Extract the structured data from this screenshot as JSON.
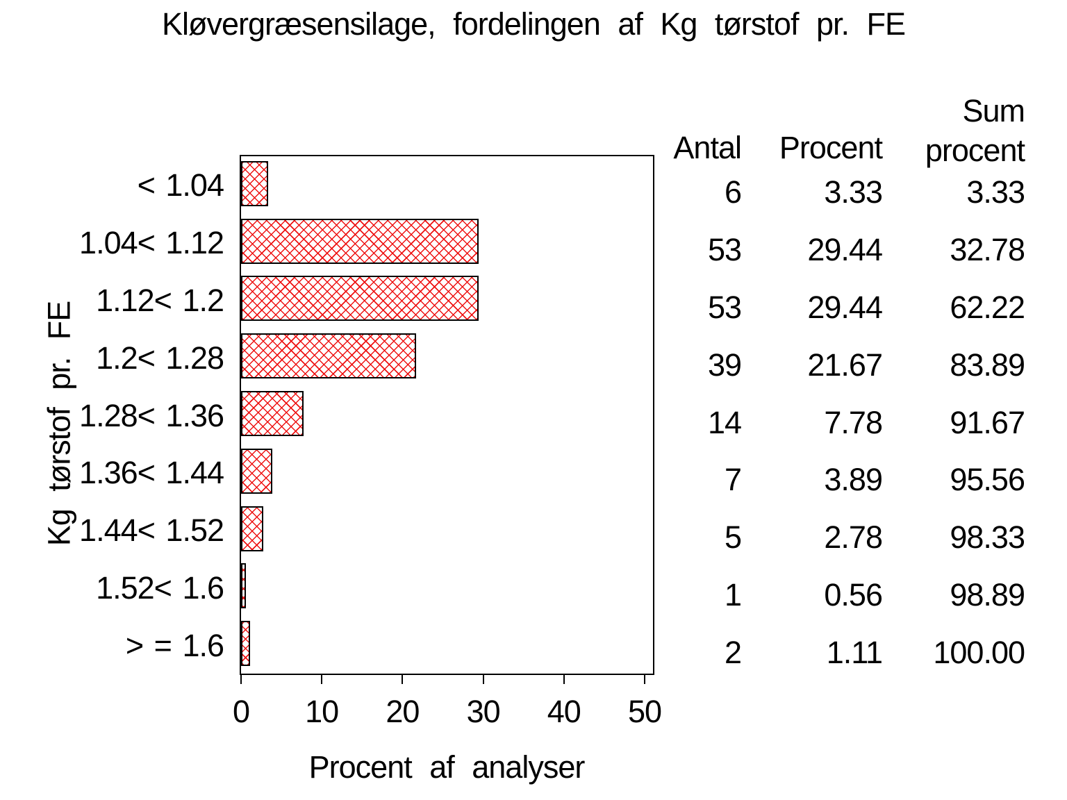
{
  "chart_data": {
    "type": "bar",
    "orientation": "horizontal",
    "title": "Kløvergræsensilage, fordelingen af Kg tørstof pr. FE",
    "xlabel": "Procent af analyser",
    "ylabel": "Kg tørstof pr. FE",
    "categories": [
      "< 1.04",
      "1.04< 1.12",
      "1.12< 1.2",
      "1.2< 1.28",
      "1.28< 1.36",
      "1.36< 1.44",
      "1.44< 1.52",
      "1.52< 1.6",
      "> = 1.6"
    ],
    "values": [
      3.33,
      29.44,
      29.44,
      21.67,
      7.78,
      3.89,
      2.78,
      0.56,
      1.11
    ],
    "xlim": [
      0,
      51
    ],
    "xticks": [
      0,
      10,
      20,
      30,
      40,
      50
    ],
    "grid": false,
    "legend": null,
    "bar_style": {
      "pattern": "diagonal-crosshatch",
      "pattern_color": "#ee1111",
      "border_color": "#000000",
      "fill_background": "#ffffff"
    },
    "table": {
      "headers": [
        "Antal",
        "Procent",
        "Sum procent"
      ],
      "rows": [
        [
          "6",
          "3.33",
          "3.33"
        ],
        [
          "53",
          "29.44",
          "32.78"
        ],
        [
          "53",
          "29.44",
          "62.22"
        ],
        [
          "39",
          "21.67",
          "83.89"
        ],
        [
          "14",
          "7.78",
          "91.67"
        ],
        [
          "7",
          "3.89",
          "95.56"
        ],
        [
          "5",
          "2.78",
          "98.33"
        ],
        [
          "1",
          "0.56",
          "98.89"
        ],
        [
          "2",
          "1.11",
          "100.00"
        ]
      ]
    }
  }
}
